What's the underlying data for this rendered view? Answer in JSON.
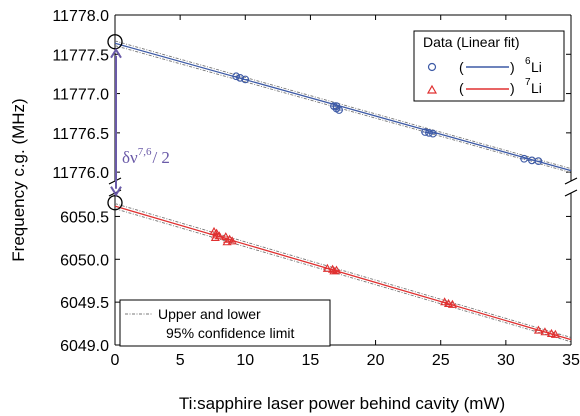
{
  "chart_data": {
    "type": "scatter",
    "xlabel": "Ti:sapphire laser power behind cavity (mW)",
    "ylabel": "Frequency c.g. (MHz)",
    "xlim": [
      0,
      35
    ],
    "x_ticks": [
      "0",
      "5",
      "10",
      "15",
      "20",
      "25",
      "30",
      "35"
    ],
    "y_axis_broken": true,
    "upper_ylim": [
      11775.9,
      11778.0
    ],
    "upper_y_ticks": [
      "11776.0",
      "11776.5",
      "11777.0",
      "11777.5",
      "11778.0"
    ],
    "lower_ylim": [
      6049.0,
      6050.75
    ],
    "lower_y_ticks": [
      "6049.0",
      "6049.5",
      "6050.0",
      "6050.5"
    ],
    "legend": {
      "title": "Data (Linear fit)",
      "placement": "top-right",
      "entries": [
        {
          "open": "(",
          "close": ")",
          "isotope_sup": "6",
          "isotope": "Li",
          "marker": "circle",
          "color": "#3d5aa6"
        },
        {
          "open": "(",
          "close": ")",
          "isotope_sup": "7",
          "isotope": "Li",
          "marker": "triangle",
          "color": "#e03030"
        }
      ]
    },
    "confidence_legend": {
      "placement": "bottom-left",
      "line1": "Upper and lower",
      "line2": "95% confidence limit"
    },
    "annotation": {
      "text": "δν",
      "sup": "7,6",
      "suffix": "/ 2",
      "color": "#6a5aa8"
    },
    "series": [
      {
        "name": "6Li",
        "panel": "upper",
        "marker": "circle",
        "color": "#3d5aa6",
        "fit": {
          "intercept": 11777.64,
          "slope": -0.0463
        },
        "intercept_point": [
          0,
          11777.66
        ],
        "points": [
          [
            9.3,
            11777.22
          ],
          [
            9.6,
            11777.2
          ],
          [
            10.0,
            11777.18
          ],
          [
            16.8,
            11776.84
          ],
          [
            17.0,
            11776.81
          ],
          [
            17.2,
            11776.79
          ],
          [
            17.0,
            11776.84
          ],
          [
            23.8,
            11776.51
          ],
          [
            24.1,
            11776.5
          ],
          [
            24.4,
            11776.49
          ],
          [
            31.4,
            11776.17
          ],
          [
            32.0,
            11776.15
          ],
          [
            32.5,
            11776.14
          ]
        ]
      },
      {
        "name": "7Li",
        "panel": "lower",
        "marker": "triangle",
        "color": "#e03030",
        "fit": {
          "intercept": 6050.62,
          "slope": -0.0445
        },
        "intercept_point": [
          0,
          6050.66
        ],
        "points": [
          [
            7.6,
            6050.32
          ],
          [
            7.8,
            6050.3
          ],
          [
            8.0,
            6050.27
          ],
          [
            7.7,
            6050.25
          ],
          [
            8.5,
            6050.26
          ],
          [
            8.8,
            6050.23
          ],
          [
            9.0,
            6050.21
          ],
          [
            8.6,
            6050.2
          ],
          [
            16.3,
            6049.89
          ],
          [
            16.7,
            6049.88
          ],
          [
            17.0,
            6049.87
          ],
          [
            16.8,
            6049.86
          ],
          [
            25.3,
            6049.5
          ],
          [
            25.6,
            6049.48
          ],
          [
            25.9,
            6049.47
          ],
          [
            32.5,
            6049.17
          ],
          [
            33.0,
            6049.15
          ],
          [
            33.5,
            6049.13
          ],
          [
            33.8,
            6049.12
          ]
        ]
      }
    ]
  }
}
